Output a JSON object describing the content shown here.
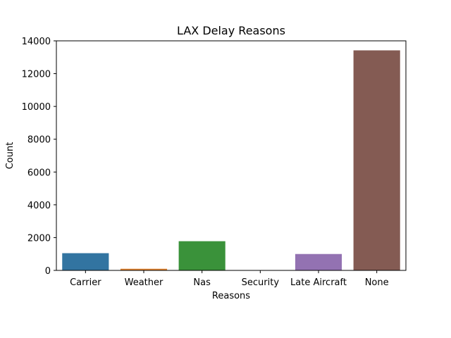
{
  "chart_data": {
    "type": "bar",
    "title": "LAX Delay Reasons",
    "xlabel": "Reasons",
    "ylabel": "Count",
    "categories": [
      "Carrier",
      "Weather",
      "Nas",
      "Security",
      "Late Aircraft",
      "None"
    ],
    "values": [
      1050,
      100,
      1780,
      5,
      1000,
      13420
    ],
    "ylim": [
      0,
      14000
    ],
    "yticks": [
      0,
      2000,
      4000,
      6000,
      8000,
      10000,
      12000,
      14000
    ],
    "colors": [
      "#3274a1",
      "#e1812c",
      "#3a923a",
      "#c03d3e",
      "#9372b2",
      "#845b53"
    ],
    "grid": false,
    "legend": "none"
  }
}
